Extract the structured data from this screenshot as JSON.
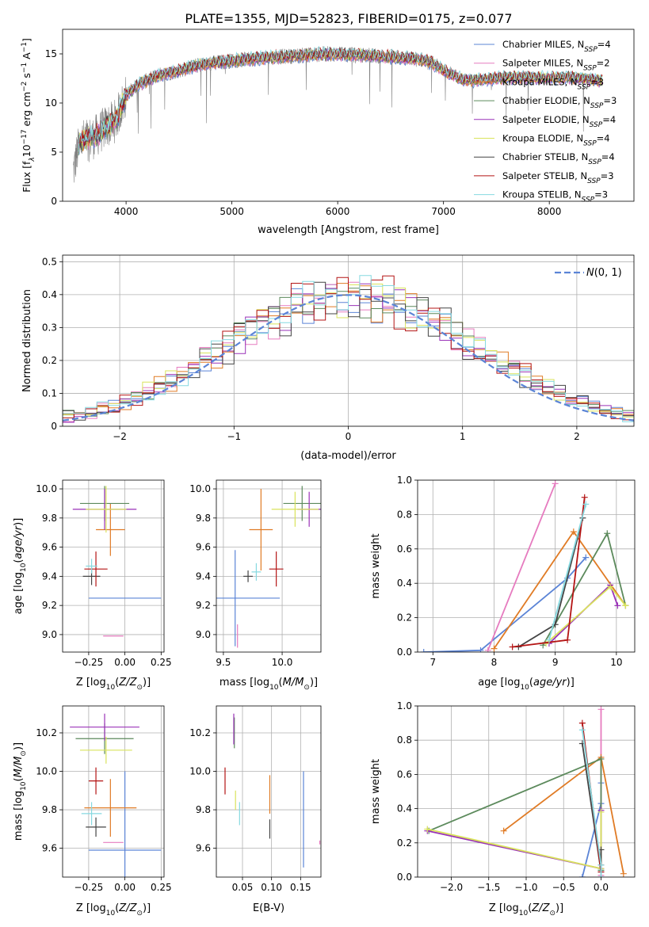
{
  "figure_title": "PLATE=1355, MJD=52823, FIBERID=0175, z=0.077",
  "colors": {
    "Chabrier MILES": "#5b84d6",
    "Salpeter MILES": "#e67bbf",
    "Kroupa MILES": "#e07b25",
    "Chabrier ELODIE": "#5c8a5c",
    "Salpeter ELODIE": "#9a32b8",
    "Kroupa ELODIE": "#d9e35c",
    "Chabrier STELIB": "#444444",
    "Salpeter STELIB": "#b41414",
    "Kroupa STELIB": "#86d9e0",
    "data": "#808080",
    "normal": "#5b84d6"
  },
  "chart_data": [
    {
      "id": "spectrum",
      "type": "line",
      "title": "PLATE=1355, MJD=52823, FIBERID=0175, z=0.077",
      "xlabel": "wavelength [Angstrom, rest frame]",
      "ylabel": "Flux [f$_\\lambda$10$^{-17}$ erg cm$^{-2}$ s$^{-1}$ A$^{-1}$]",
      "ylabel_parts": [
        "Flux [f",
        "λ",
        "10",
        "−17",
        " erg cm",
        "−2",
        " s",
        "−1",
        " A",
        "−1",
        "]"
      ],
      "xlim": [
        3400,
        8800
      ],
      "ylim": [
        0,
        17.5
      ],
      "xticks": [
        4000,
        5000,
        6000,
        7000,
        8000
      ],
      "yticks": [
        0,
        5,
        10,
        15
      ],
      "legend_loc": "upper right",
      "legend": [
        {
          "name": "Chabrier MILES",
          "ssp": "4"
        },
        {
          "name": "Salpeter MILES",
          "ssp": "2"
        },
        {
          "name": "Kroupa MILES",
          "ssp": "3"
        },
        {
          "name": "Chabrier ELODIE",
          "ssp": "3"
        },
        {
          "name": "Salpeter ELODIE",
          "ssp": "4"
        },
        {
          "name": "Kroupa ELODIE",
          "ssp": "4"
        },
        {
          "name": "Chabrier STELIB",
          "ssp": "4"
        },
        {
          "name": "Salpeter STELIB",
          "ssp": "3"
        },
        {
          "name": "Kroupa STELIB",
          "ssp": "3"
        }
      ],
      "legend_label_prefix": ", N",
      "legend_label_sub": "SSP",
      "continuum_knots": {
        "x": [
          3500,
          3560,
          3620,
          3700,
          3800,
          3900,
          3950,
          4000,
          4100,
          4300,
          4500,
          4700,
          5000,
          5300,
          5600,
          5900,
          6200,
          6500,
          6800,
          6900,
          7000,
          7200,
          7400,
          7600,
          7800,
          8000,
          8200,
          8500
        ],
        "y": [
          3.0,
          6.0,
          6.3,
          6.5,
          7.5,
          8.2,
          9.5,
          10.8,
          11.8,
          12.8,
          13.3,
          13.9,
          14.3,
          14.6,
          14.8,
          15.0,
          14.9,
          14.7,
          14.4,
          14.0,
          13.3,
          12.3,
          12.4,
          12.6,
          12.6,
          12.5,
          12.6,
          12.3
        ]
      },
      "data_xrange": [
        3500,
        8500
      ],
      "model_xrange": [
        3550,
        8500
      ]
    },
    {
      "id": "residuals",
      "type": "line",
      "xlabel": "(data-model)/error",
      "ylabel": "Normed distribution",
      "xlim": [
        -2.5,
        2.5
      ],
      "ylim": [
        0,
        0.52
      ],
      "xticks": [
        -2,
        -1,
        0,
        1,
        2
      ],
      "yticks": [
        0.0,
        0.1,
        0.2,
        0.3,
        0.4,
        0.5
      ],
      "legend_loc": "upper right",
      "legend": [
        "N(0, 1)"
      ],
      "normal": {
        "mean": 0,
        "sigma": 1
      },
      "hist_bin_width": 0.1
    },
    {
      "id": "age-vs-Z",
      "type": "scatter",
      "xlabel": "Z [log10(Z/Z⊙)]",
      "ylabel": "age  [log10(age/yr)]",
      "xlim": [
        -0.43,
        0.27
      ],
      "ylim": [
        8.88,
        10.06
      ],
      "xticks": [
        -0.25,
        0.0,
        0.25
      ],
      "xtick_labels": [
        "−0.25",
        "0.00",
        "0.25"
      ],
      "yticks": [
        9.0,
        9.2,
        9.4,
        9.6,
        9.8,
        10.0
      ],
      "ytick_labels": [
        "9.0",
        "9.2",
        "9.4",
        "9.6",
        "9.8",
        "10.0"
      ],
      "errorbars": [
        {
          "series": "Chabrier MILES",
          "x": 0.0,
          "xerr": 0.25,
          "y": 9.25,
          "yerr": 0.0
        },
        {
          "series": "Salpeter MILES",
          "x": -0.08,
          "xerr": 0.07,
          "y": 8.99,
          "yerr": 0.0
        },
        {
          "series": "Kroupa MILES",
          "x": -0.1,
          "xerr": 0.1,
          "y": 9.72,
          "yerr": 0.18
        },
        {
          "series": "Chabrier ELODIE",
          "x": -0.14,
          "xerr": 0.17,
          "y": 9.9,
          "yerr": 0.12
        },
        {
          "series": "Salpeter ELODIE",
          "x": -0.14,
          "xerr": 0.22,
          "y": 9.86,
          "yerr": 0.14
        },
        {
          "series": "Kroupa ELODIE",
          "x": -0.13,
          "xerr": 0.14,
          "y": 9.86,
          "yerr": 0.16
        },
        {
          "series": "Chabrier STELIB",
          "x": -0.23,
          "xerr": 0.06,
          "y": 9.4,
          "yerr": 0.06
        },
        {
          "series": "Salpeter STELIB",
          "x": -0.2,
          "xerr": 0.08,
          "y": 9.45,
          "yerr": 0.12
        },
        {
          "series": "Kroupa STELIB",
          "x": -0.23,
          "xerr": 0.04,
          "y": 9.47,
          "yerr": 0.05
        }
      ]
    },
    {
      "id": "age-vs-mass",
      "type": "scatter",
      "xlabel": "mass [log10(M/M⊙)]",
      "xlim": [
        9.44,
        10.33
      ],
      "ylim": [
        8.88,
        10.06
      ],
      "xticks": [
        9.5,
        10.0
      ],
      "xtick_labels": [
        "9.5",
        "10.0"
      ],
      "yticks": [
        9.0,
        9.2,
        9.4,
        9.6,
        9.8,
        10.0
      ],
      "ytick_labels": [
        "9.0",
        "9.2",
        "9.4",
        "9.6",
        "9.8",
        "10.0"
      ],
      "errorbars": [
        {
          "series": "Chabrier MILES",
          "x": 9.6,
          "xerr": 0.38,
          "y": 9.25,
          "yerr": 0.33
        },
        {
          "series": "Salpeter MILES",
          "x": 9.62,
          "xerr": 0.0,
          "y": 8.99,
          "yerr": 0.08
        },
        {
          "series": "Kroupa MILES",
          "x": 9.82,
          "xerr": 0.1,
          "y": 9.72,
          "yerr": 0.28
        },
        {
          "series": "Chabrier ELODIE",
          "x": 10.17,
          "xerr": 0.16,
          "y": 9.9,
          "yerr": 0.12
        },
        {
          "series": "Salpeter ELODIE",
          "x": 10.23,
          "xerr": 0.1,
          "y": 9.86,
          "yerr": 0.12
        },
        {
          "series": "Kroupa ELODIE",
          "x": 10.11,
          "xerr": 0.2,
          "y": 9.86,
          "yerr": 0.12
        },
        {
          "series": "Chabrier STELIB",
          "x": 9.71,
          "xerr": 0.04,
          "y": 9.4,
          "yerr": 0.04
        },
        {
          "series": "Salpeter STELIB",
          "x": 9.95,
          "xerr": 0.06,
          "y": 9.45,
          "yerr": 0.12
        },
        {
          "series": "Kroupa STELIB",
          "x": 9.78,
          "xerr": 0.04,
          "y": 9.43,
          "yerr": 0.06
        }
      ]
    },
    {
      "id": "weights-vs-age",
      "type": "line",
      "xlabel": "age  [log10(age/yr)]",
      "ylabel": "mass weight",
      "xlim": [
        6.75,
        10.3
      ],
      "ylim": [
        0,
        1.0
      ],
      "xticks": [
        7,
        8,
        9,
        10
      ],
      "xtick_labels": [
        "7",
        "8",
        "9",
        "10"
      ],
      "yticks": [
        0.0,
        0.2,
        0.4,
        0.6,
        0.8,
        1.0
      ],
      "ytick_labels": [
        "0.0",
        "0.2",
        "0.4",
        "0.6",
        "0.8",
        "1.0"
      ],
      "series": [
        {
          "name": "Chabrier MILES",
          "x": [
            6.85,
            7.78,
            9.2,
            9.5
          ],
          "y": [
            0.0,
            0.01,
            0.43,
            0.55
          ]
        },
        {
          "name": "Salpeter MILES",
          "x": [
            7.9,
            9.0
          ],
          "y": [
            0.01,
            0.98
          ]
        },
        {
          "name": "Kroupa MILES",
          "x": [
            8.0,
            9.3,
            10.15
          ],
          "y": [
            0.02,
            0.7,
            0.27
          ]
        },
        {
          "name": "Chabrier ELODIE",
          "x": [
            8.8,
            9.85,
            10.15
          ],
          "y": [
            0.04,
            0.69,
            0.27
          ]
        },
        {
          "name": "Salpeter ELODIE",
          "x": [
            8.9,
            9.9,
            10.02
          ],
          "y": [
            0.05,
            0.39,
            0.27
          ]
        },
        {
          "name": "Kroupa ELODIE",
          "x": [
            8.85,
            9.9,
            10.15
          ],
          "y": [
            0.05,
            0.38,
            0.27
          ]
        },
        {
          "name": "Chabrier STELIB",
          "x": [
            8.4,
            9.0,
            9.45
          ],
          "y": [
            0.03,
            0.16,
            0.78
          ]
        },
        {
          "name": "Salpeter STELIB",
          "x": [
            8.3,
            9.2,
            9.48
          ],
          "y": [
            0.03,
            0.07,
            0.9
          ]
        },
        {
          "name": "Kroupa STELIB",
          "x": [
            8.9,
            9.5
          ],
          "y": [
            0.07,
            0.86
          ]
        }
      ]
    },
    {
      "id": "mass-vs-Z",
      "type": "scatter",
      "xlabel": "Z [log10(Z/Z⊙)]",
      "ylabel": "mass [log10(M/M⊙)]",
      "xlim": [
        -0.43,
        0.27
      ],
      "ylim": [
        9.45,
        10.34
      ],
      "xticks": [
        -0.25,
        0.0,
        0.25
      ],
      "xtick_labels": [
        "−0.25",
        "0.00",
        "0.25"
      ],
      "yticks": [
        9.6,
        9.8,
        10.0,
        10.2
      ],
      "ytick_labels": [
        "9.6",
        "9.8",
        "10.0",
        "10.2"
      ],
      "errorbars": [
        {
          "series": "Chabrier MILES",
          "x": 0.0,
          "xerr": 0.25,
          "y": 9.59,
          "yerr": 0.41
        },
        {
          "series": "Salpeter MILES",
          "x": -0.08,
          "xerr": 0.07,
          "y": 9.63,
          "yerr": 0.0
        },
        {
          "series": "Kroupa MILES",
          "x": -0.1,
          "xerr": 0.18,
          "y": 9.81,
          "yerr": 0.15
        },
        {
          "series": "Chabrier ELODIE",
          "x": -0.14,
          "xerr": 0.2,
          "y": 10.17,
          "yerr": 0.08
        },
        {
          "series": "Salpeter ELODIE",
          "x": -0.14,
          "xerr": 0.24,
          "y": 10.23,
          "yerr": 0.07
        },
        {
          "series": "Kroupa ELODIE",
          "x": -0.13,
          "xerr": 0.18,
          "y": 10.11,
          "yerr": 0.07
        },
        {
          "series": "Chabrier STELIB",
          "x": -0.2,
          "xerr": 0.07,
          "y": 9.71,
          "yerr": 0.05
        },
        {
          "series": "Salpeter STELIB",
          "x": -0.2,
          "xerr": 0.05,
          "y": 9.95,
          "yerr": 0.07
        },
        {
          "series": "Kroupa STELIB",
          "x": -0.23,
          "xerr": 0.07,
          "y": 9.78,
          "yerr": 0.06
        }
      ]
    },
    {
      "id": "mass-vs-EBV",
      "type": "scatter",
      "xlabel": "E(B-V)",
      "xlim": [
        0.005,
        0.185
      ],
      "ylim": [
        9.45,
        10.34
      ],
      "xticks": [
        0.05,
        0.1,
        0.15
      ],
      "xtick_labels": [
        "0.05",
        "0.10",
        "0.15"
      ],
      "yticks": [
        9.6,
        9.8,
        10.0,
        10.2
      ],
      "ytick_labels": [
        "9.6",
        "9.8",
        "10.0",
        "10.2"
      ],
      "errorbars": [
        {
          "series": "Chabrier MILES",
          "x": 0.155,
          "xerr": 0.0,
          "y": 9.75,
          "yerr": 0.25
        },
        {
          "series": "Salpeter MILES",
          "x": 0.183,
          "xerr": 0.0,
          "y": 9.63,
          "yerr": 0.01
        },
        {
          "series": "Kroupa MILES",
          "x": 0.097,
          "xerr": 0.0,
          "y": 9.88,
          "yerr": 0.1
        },
        {
          "series": "Chabrier ELODIE",
          "x": 0.036,
          "xerr": 0.0,
          "y": 10.2,
          "yerr": 0.08
        },
        {
          "series": "Salpeter ELODIE",
          "x": 0.035,
          "xerr": 0.0,
          "y": 10.22,
          "yerr": 0.08
        },
        {
          "series": "Kroupa ELODIE",
          "x": 0.038,
          "xerr": 0.0,
          "y": 9.85,
          "yerr": 0.05
        },
        {
          "series": "Chabrier STELIB",
          "x": 0.097,
          "xerr": 0.0,
          "y": 9.7,
          "yerr": 0.05
        },
        {
          "series": "Salpeter STELIB",
          "x": 0.02,
          "xerr": 0.0,
          "y": 9.95,
          "yerr": 0.07
        },
        {
          "series": "Kroupa STELIB",
          "x": 0.045,
          "xerr": 0.0,
          "y": 9.78,
          "yerr": 0.06
        }
      ]
    },
    {
      "id": "weights-vs-Z",
      "type": "line",
      "xlabel": "Z [log10(Z/Z⊙)]",
      "ylabel": "mass weight",
      "xlim": [
        -2.45,
        0.45
      ],
      "ylim": [
        0,
        1.0
      ],
      "xticks": [
        -2.0,
        -1.5,
        -1.0,
        -0.5,
        0.0
      ],
      "xtick_labels": [
        "−2.0",
        "−1.5",
        "−1.0",
        "−0.5",
        "0.0"
      ],
      "yticks": [
        0.0,
        0.2,
        0.4,
        0.6,
        0.8,
        1.0
      ],
      "ytick_labels": [
        "0.0",
        "0.2",
        "0.4",
        "0.6",
        "0.8",
        "1.0"
      ],
      "series": [
        {
          "name": "Chabrier MILES",
          "x": [
            -0.25,
            0.0,
            0.0
          ],
          "y": [
            0.0,
            0.43,
            0.55
          ]
        },
        {
          "name": "Salpeter MILES",
          "x": [
            0.0,
            0.0
          ],
          "y": [
            0.01,
            0.98
          ]
        },
        {
          "name": "Kroupa MILES",
          "x": [
            -1.3,
            0.0,
            0.3
          ],
          "y": [
            0.27,
            0.7,
            0.02
          ]
        },
        {
          "name": "Chabrier ELODIE",
          "x": [
            -2.3,
            0.0,
            0.0
          ],
          "y": [
            0.27,
            0.69,
            0.04
          ]
        },
        {
          "name": "Salpeter ELODIE",
          "x": [
            -2.32,
            0.0,
            0.0
          ],
          "y": [
            0.27,
            0.05,
            0.39
          ]
        },
        {
          "name": "Kroupa ELODIE",
          "x": [
            -2.32,
            0.0,
            0.0
          ],
          "y": [
            0.28,
            0.05,
            0.38
          ]
        },
        {
          "name": "Chabrier STELIB",
          "x": [
            -0.25,
            0.0,
            0.0
          ],
          "y": [
            0.78,
            0.03,
            0.16
          ]
        },
        {
          "name": "Salpeter STELIB",
          "x": [
            -0.25,
            0.0,
            0.0
          ],
          "y": [
            0.9,
            0.03,
            0.07
          ]
        },
        {
          "name": "Kroupa STELIB",
          "x": [
            -0.25,
            0.0,
            0.0
          ],
          "y": [
            0.86,
            0.07,
            0.0
          ]
        }
      ]
    }
  ]
}
